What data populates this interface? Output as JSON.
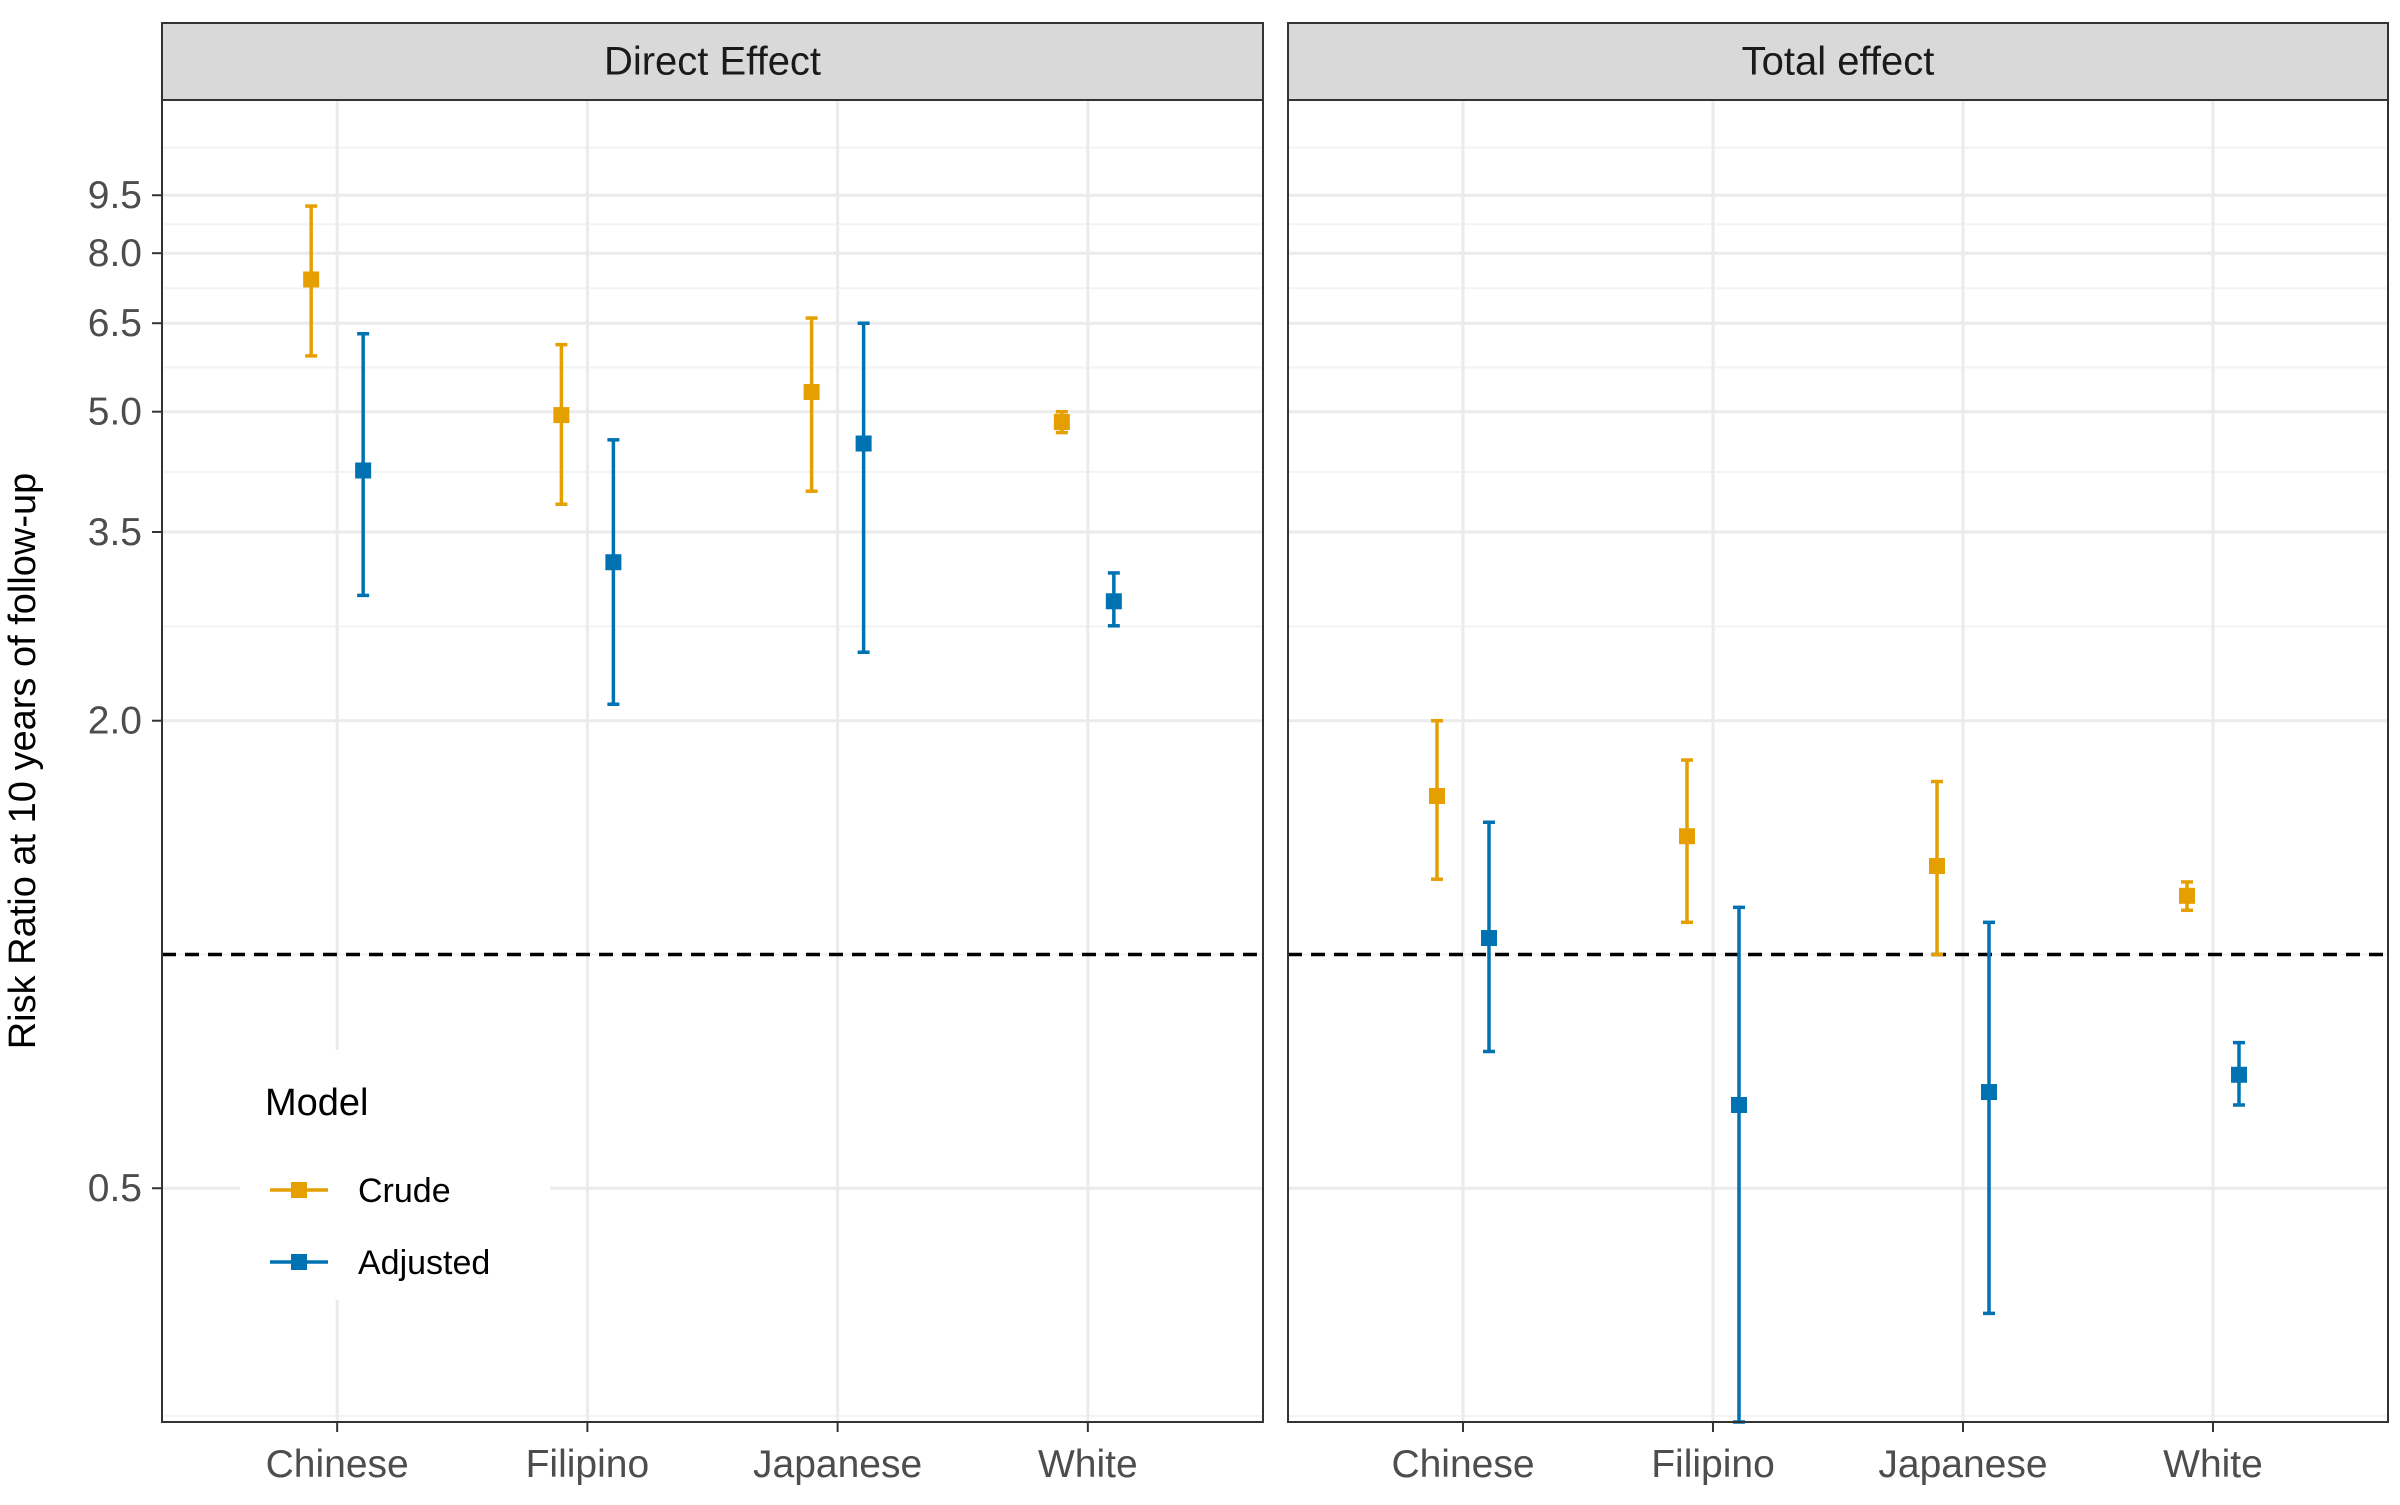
{
  "chart_data": {
    "type": "scatter",
    "subtype": "point-range faceted plot",
    "ylabel": "Risk Ratio at 10 years of follow-up",
    "xlabel": "",
    "y_scale": "log",
    "ylim": [
      0.25,
      12.6
    ],
    "y_ticks": [
      0.5,
      2.0,
      3.5,
      5.0,
      6.5,
      8.0,
      9.5
    ],
    "y_tick_labels": [
      "0.5",
      "2.0",
      "3.5",
      "5.0",
      "6.5",
      "8.0",
      "9.5"
    ],
    "reference_line": 1.0,
    "categories": [
      "Chinese",
      "Filipino",
      "Japanese",
      "White"
    ],
    "legend": {
      "title": "Model",
      "placement": "inside-bottom-left",
      "entries": [
        {
          "name": "Crude",
          "color": "#E69F00"
        },
        {
          "name": "Adjusted",
          "color": "#0072B2"
        }
      ]
    },
    "panels": [
      {
        "title": "Direct Effect",
        "series": [
          {
            "name": "Crude",
            "color": "#E69F00",
            "points": [
              {
                "category": "Chinese",
                "y": 7.4,
                "lower": 5.9,
                "upper": 9.2
              },
              {
                "category": "Filipino",
                "y": 4.95,
                "lower": 3.8,
                "upper": 6.1
              },
              {
                "category": "Japanese",
                "y": 5.3,
                "lower": 3.95,
                "upper": 6.6
              },
              {
                "category": "White",
                "y": 4.85,
                "lower": 4.7,
                "upper": 5.0
              }
            ]
          },
          {
            "name": "Adjusted",
            "color": "#0072B2",
            "points": [
              {
                "category": "Chinese",
                "y": 4.2,
                "lower": 2.9,
                "upper": 6.3
              },
              {
                "category": "Filipino",
                "y": 3.2,
                "lower": 2.1,
                "upper": 4.6
              },
              {
                "category": "Japanese",
                "y": 4.55,
                "lower": 2.45,
                "upper": 6.5
              },
              {
                "category": "White",
                "y": 2.85,
                "lower": 2.65,
                "upper": 3.1
              }
            ]
          }
        ]
      },
      {
        "title": "Total effect",
        "series": [
          {
            "name": "Crude",
            "color": "#E69F00",
            "points": [
              {
                "category": "Chinese",
                "y": 1.6,
                "lower": 1.25,
                "upper": 2.0
              },
              {
                "category": "Filipino",
                "y": 1.42,
                "lower": 1.1,
                "upper": 1.78
              },
              {
                "category": "Japanese",
                "y": 1.3,
                "lower": 1.0,
                "upper": 1.67
              },
              {
                "category": "White",
                "y": 1.19,
                "lower": 1.14,
                "upper": 1.24
              }
            ]
          },
          {
            "name": "Adjusted",
            "color": "#0072B2",
            "points": [
              {
                "category": "Chinese",
                "y": 1.05,
                "lower": 0.75,
                "upper": 1.48
              },
              {
                "category": "Filipino",
                "y": 0.64,
                "lower": 0.25,
                "upper": 1.15
              },
              {
                "category": "Japanese",
                "y": 0.665,
                "lower": 0.345,
                "upper": 1.1
              },
              {
                "category": "White",
                "y": 0.7,
                "lower": 0.64,
                "upper": 0.77
              }
            ]
          }
        ]
      }
    ]
  }
}
